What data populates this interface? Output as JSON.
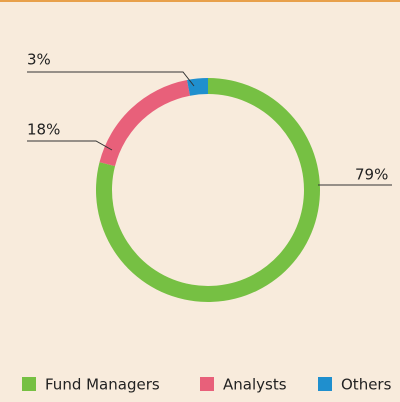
{
  "chart_data": {
    "type": "donut",
    "categories": [
      "Fund Managers",
      "Analysts",
      "Others"
    ],
    "values": [
      79,
      18,
      3
    ],
    "value_labels": [
      "79%",
      "18%",
      "3%"
    ],
    "colors": [
      "#76c043",
      "#e8607a",
      "#1f8fce"
    ]
  }
}
